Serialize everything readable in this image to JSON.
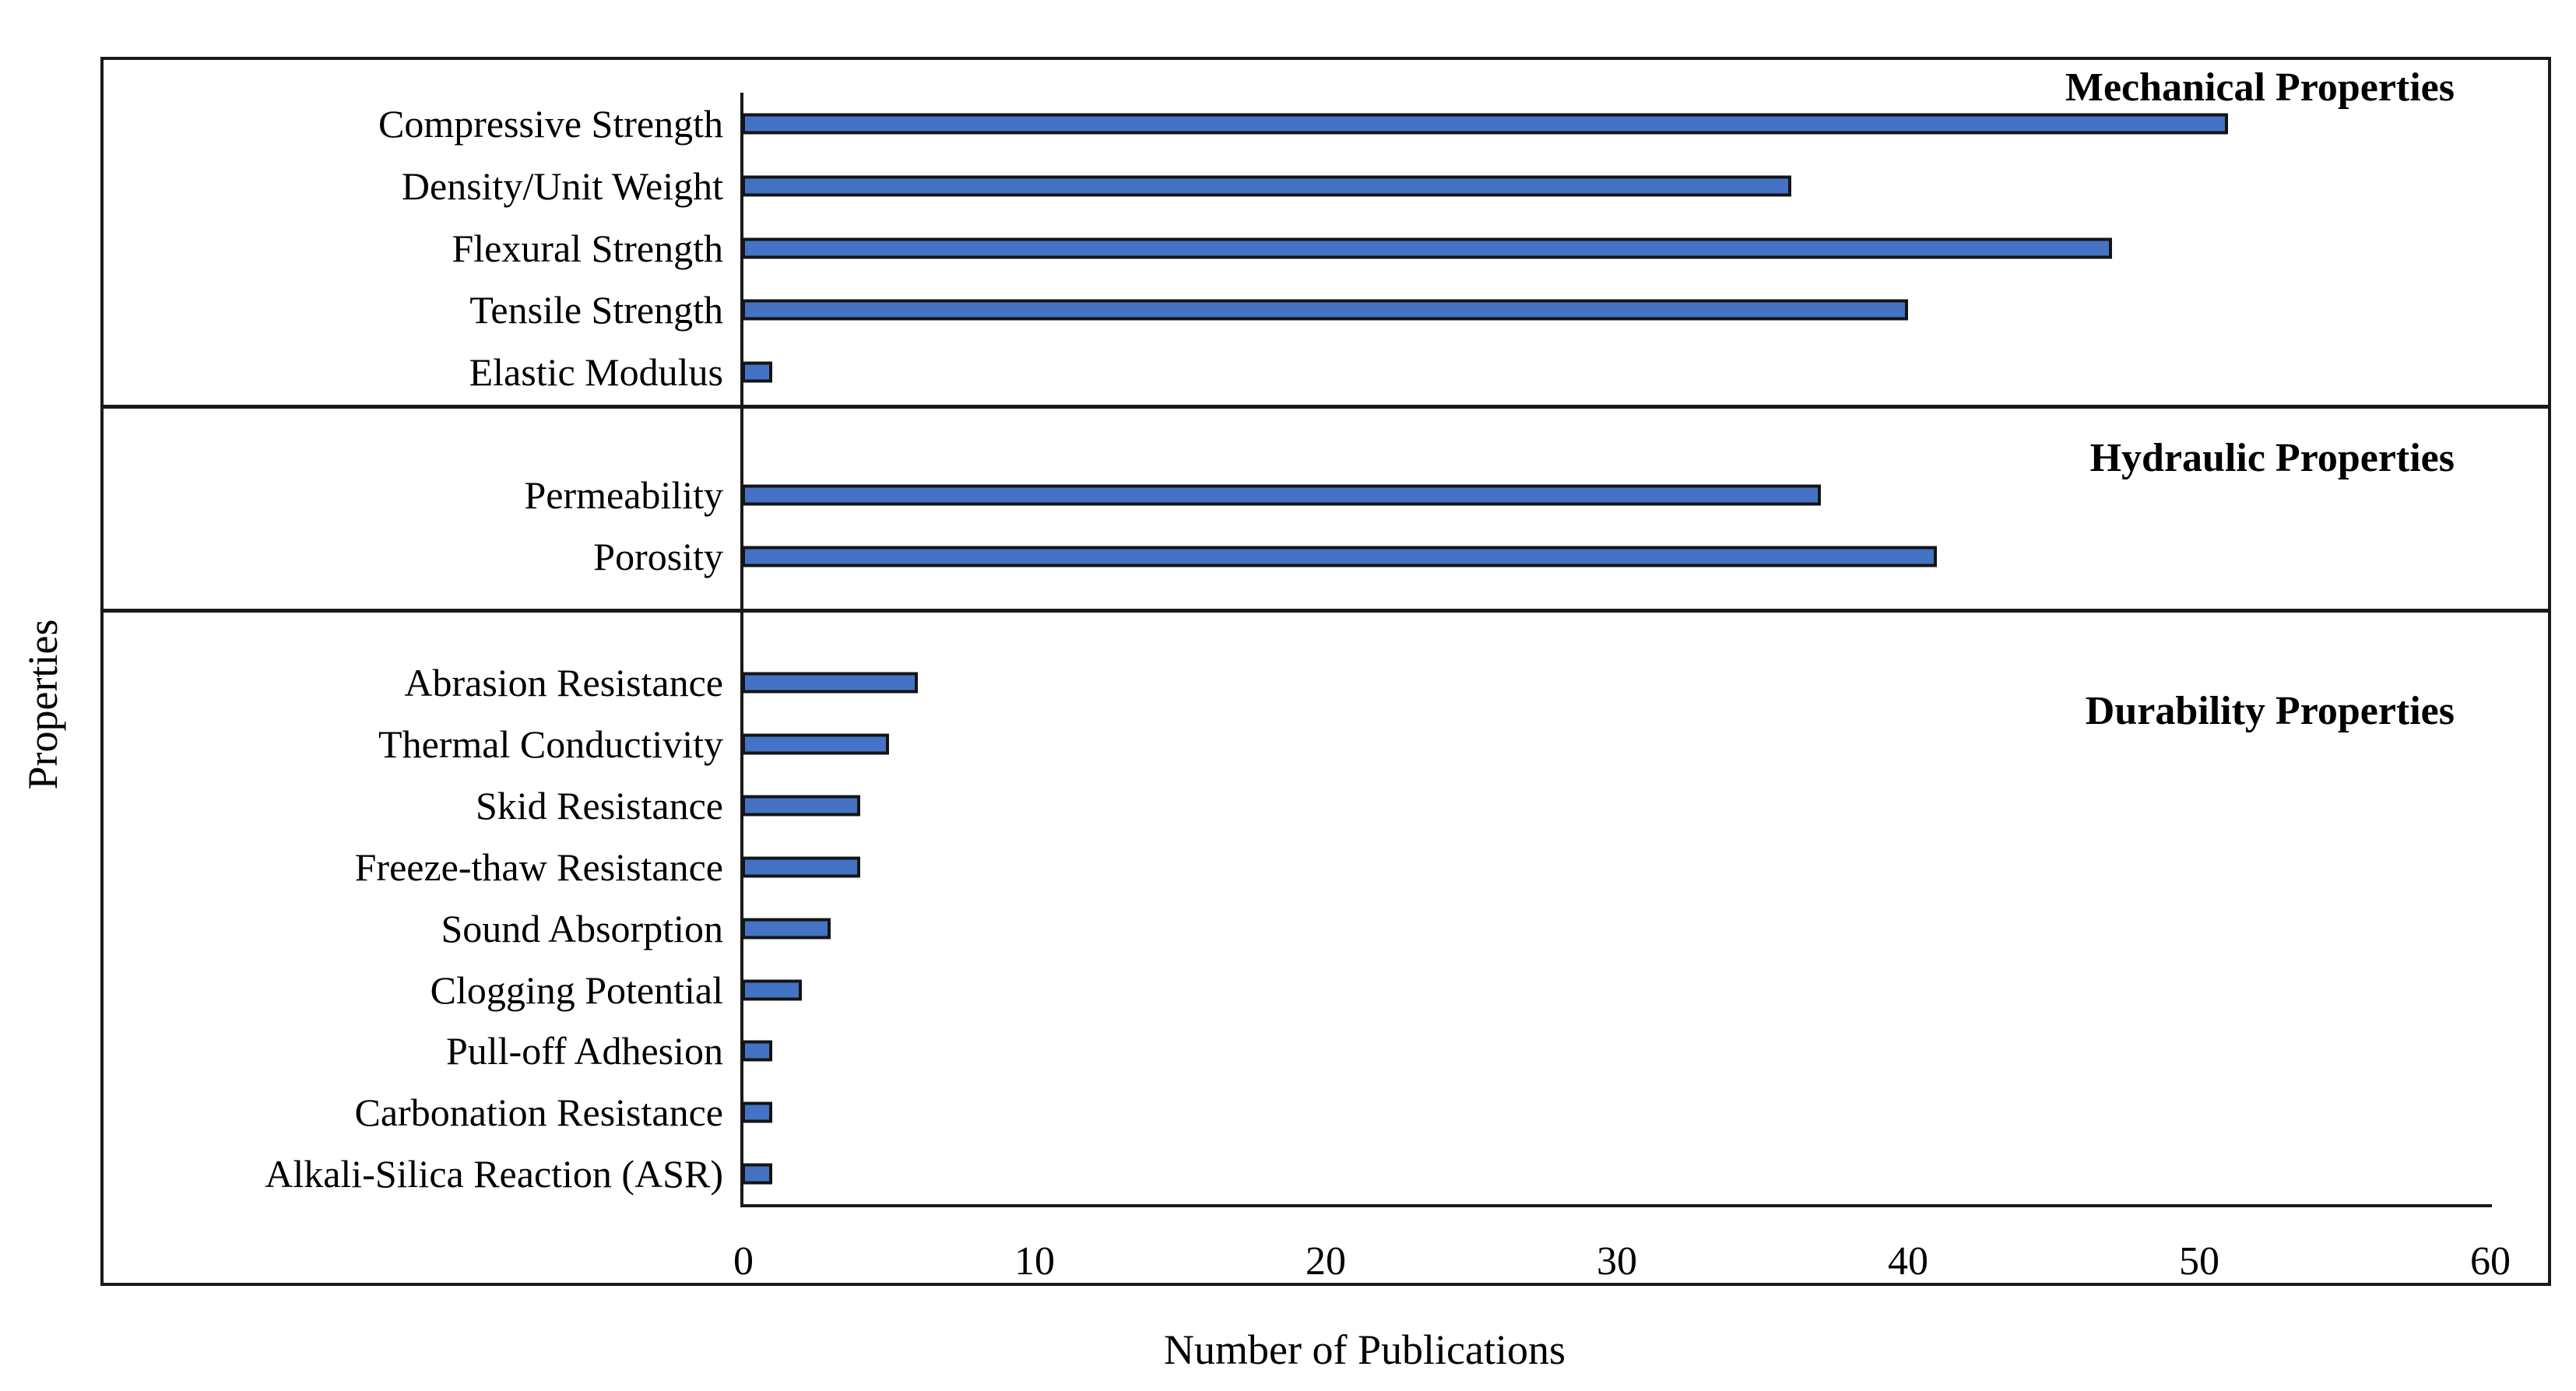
{
  "chart_data": {
    "type": "bar",
    "orientation": "horizontal",
    "title": "",
    "xlabel": "Number of Publications",
    "ylabel": "Properties",
    "xlim": [
      0,
      60
    ],
    "x_ticks": [
      0,
      10,
      20,
      30,
      40,
      50,
      60
    ],
    "grid": false,
    "legend": "none",
    "bar_color": "#4472C4",
    "bar_border_color": "#141414",
    "sections": [
      {
        "title": "Mechanical Properties",
        "items": [
          {
            "label": "Compressive Strength",
            "value": 51
          },
          {
            "label": "Density/Unit Weight",
            "value": 36
          },
          {
            "label": "Flexural Strength",
            "value": 47
          },
          {
            "label": "Tensile Strength",
            "value": 40
          },
          {
            "label": "Elastic Modulus",
            "value": 1
          }
        ]
      },
      {
        "title": "Hydraulic Properties",
        "items": [
          {
            "label": "Permeability",
            "value": 37
          },
          {
            "label": "Porosity",
            "value": 41
          }
        ]
      },
      {
        "title": "Durability Properties",
        "items": [
          {
            "label": "Abrasion Resistance",
            "value": 6
          },
          {
            "label": "Thermal Conductivity",
            "value": 5
          },
          {
            "label": "Skid Resistance",
            "value": 4
          },
          {
            "label": "Freeze-thaw Resistance",
            "value": 4
          },
          {
            "label": "Sound Absorption",
            "value": 3
          },
          {
            "label": "Clogging Potential",
            "value": 2
          },
          {
            "label": "Pull-off Adhesion",
            "value": 1
          },
          {
            "label": "Carbonation Resistance",
            "value": 1
          },
          {
            "label": "Alkali-Silica Reaction (ASR)",
            "value": 1
          }
        ]
      }
    ]
  }
}
